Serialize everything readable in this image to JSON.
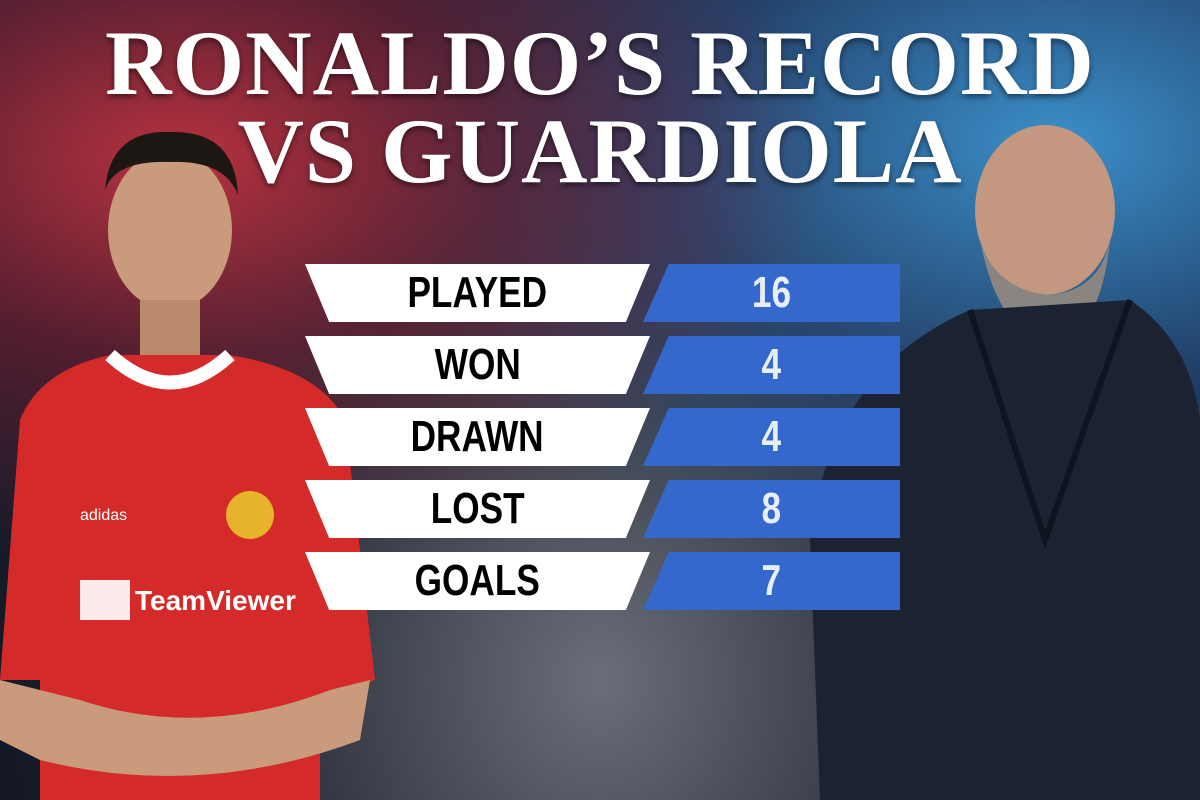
{
  "title": {
    "line1": "RONALDO’S RECORD",
    "line2": "VS GUARDIOLA"
  },
  "colors": {
    "label_bg": "#ffffff",
    "value_bg": "#3568cc",
    "left_theme": "#c0282e",
    "right_theme": "#3b8fc9"
  },
  "stats": [
    {
      "label": "PLAYED",
      "value": "16"
    },
    {
      "label": "WON",
      "value": "4"
    },
    {
      "label": "DRAWN",
      "value": "4"
    },
    {
      "label": "LOST",
      "value": "8"
    },
    {
      "label": "GOALS",
      "value": "7"
    }
  ],
  "left_person": {
    "shirt_text": "TeamViewer",
    "kit_brand": "adidas"
  },
  "right_person": {}
}
